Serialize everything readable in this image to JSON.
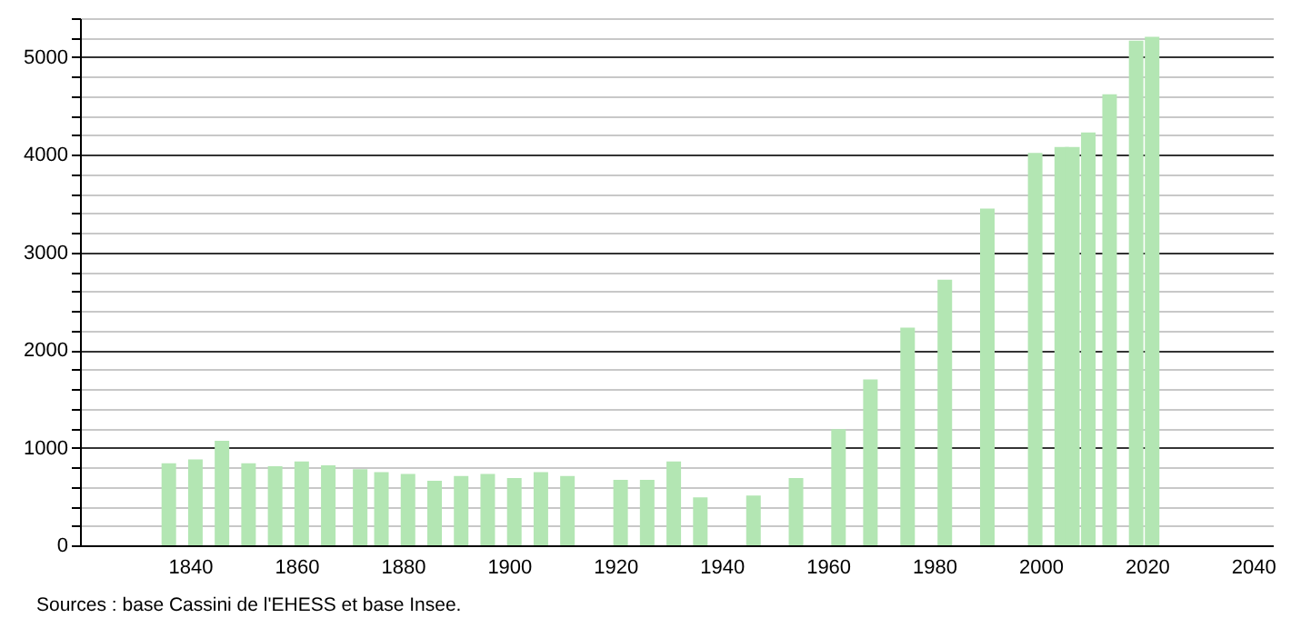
{
  "chart_data": {
    "type": "bar",
    "annotations": [
      "Sources : base Cassini de l'EHESS et base Insee."
    ],
    "x": [
      1836,
      1841,
      1846,
      1851,
      1856,
      1861,
      1866,
      1872,
      1876,
      1881,
      1886,
      1891,
      1896,
      1901,
      1906,
      1911,
      1921,
      1926,
      1931,
      1936,
      1946,
      1954,
      1962,
      1968,
      1975,
      1982,
      1990,
      1999,
      2004,
      2006,
      2009,
      2013,
      2018,
      2021
    ],
    "values": [
      840,
      880,
      1070,
      840,
      810,
      860,
      820,
      780,
      750,
      730,
      660,
      710,
      730,
      690,
      750,
      710,
      670,
      670,
      860,
      490,
      510,
      690,
      1190,
      1700,
      2230,
      2720,
      3450,
      4020,
      4080,
      4080,
      4230,
      4620,
      5170,
      5210
    ],
    "color": "#b3e6b3",
    "xlim": [
      1821,
      2042
    ],
    "xticks": [
      1840,
      1860,
      1880,
      1900,
      1920,
      1940,
      1960,
      1980,
      2000,
      2020,
      2040
    ],
    "ylim": [
      0,
      5400
    ],
    "yticks": [
      0,
      {
        "value": 200,
        "label": null
      },
      {
        "value": 400,
        "label": null
      },
      {
        "value": 600,
        "label": null
      },
      {
        "value": 800,
        "label": null
      },
      1000,
      {
        "value": 1200,
        "label": null
      },
      {
        "value": 1400,
        "label": null
      },
      {
        "value": 1600,
        "label": null
      },
      {
        "value": 1800,
        "label": null
      },
      2000,
      {
        "value": 2200,
        "label": null
      },
      {
        "value": 2400,
        "label": null
      },
      {
        "value": 2600,
        "label": null
      },
      {
        "value": 2800,
        "label": null
      },
      3000,
      {
        "value": 3200,
        "label": null
      },
      {
        "value": 3400,
        "label": null
      },
      {
        "value": 3600,
        "label": null
      },
      {
        "value": 3800,
        "label": null
      },
      4000,
      {
        "value": 4200,
        "label": null
      },
      {
        "value": 4400,
        "label": null
      },
      {
        "value": 4600,
        "label": null
      },
      {
        "value": 4800,
        "label": null
      },
      5000,
      {
        "value": 5200,
        "label": null
      },
      {
        "value": 5400,
        "label": null
      }
    ],
    "grid": "y"
  }
}
